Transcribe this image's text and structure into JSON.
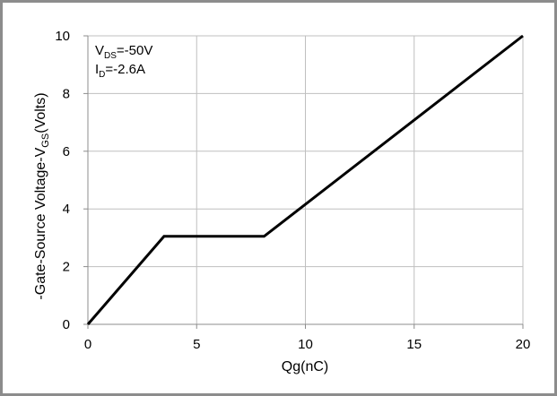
{
  "chart_data": {
    "type": "line",
    "xlabel": "Qg(nC)",
    "ylabel": {
      "prefix": "-Gate-Source Voltage-V",
      "subscript": "GS",
      "suffix": "(Volts)"
    },
    "xlim": [
      0,
      20
    ],
    "ylim": [
      0,
      10
    ],
    "xticks": [
      0,
      5,
      10,
      15,
      20
    ],
    "yticks": [
      0,
      2,
      4,
      6,
      8,
      10
    ],
    "grid": true,
    "annotations": [
      {
        "main": "V",
        "sub": "DS",
        "rest": "=-50V"
      },
      {
        "main": "I",
        "sub": "D",
        "rest": "=-2.6A"
      }
    ],
    "series": [
      {
        "x": [
          0,
          3.5,
          8.1,
          20
        ],
        "y": [
          0,
          3.05,
          3.05,
          10
        ]
      }
    ],
    "colors": {
      "line": "#000000",
      "grid": "#bfbfbf",
      "axis": "#8c8c8c",
      "frame": "#8c8c8c"
    }
  }
}
